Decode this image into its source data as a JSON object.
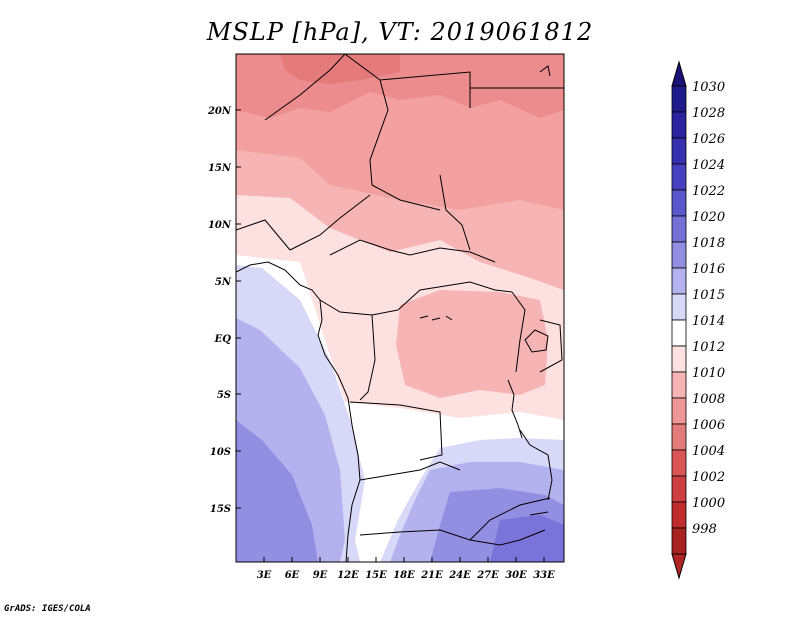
{
  "title": "MSLP [hPa], VT: 2019061812",
  "credit": "GrADS: IGES/COLA",
  "latitude_labels": [
    "20N",
    "15N",
    "10N",
    "5N",
    "EQ",
    "5S",
    "10S",
    "15S"
  ],
  "longitude_labels": [
    "3E",
    "6E",
    "9E",
    "12E",
    "15E",
    "18E",
    "21E",
    "24E",
    "27E",
    "30E",
    "33E"
  ],
  "colorbar": {
    "levels": [
      {
        "label": "1030",
        "color": "#1e1a8c"
      },
      {
        "label": "1028",
        "color": "#2a229e"
      },
      {
        "label": "1026",
        "color": "#3630b0"
      },
      {
        "label": "1024",
        "color": "#4640c0"
      },
      {
        "label": "1022",
        "color": "#5a56cc"
      },
      {
        "label": "1020",
        "color": "#7470d8"
      },
      {
        "label": "1018",
        "color": "#928fe2"
      },
      {
        "label": "1016",
        "color": "#b4b2ee"
      },
      {
        "label": "1015",
        "color": "#d8d8f8"
      },
      {
        "label": "1014",
        "color": "#ffffff"
      },
      {
        "label": "1012",
        "color": "#fde0e0"
      },
      {
        "label": "1010",
        "color": "#f6b4b4"
      },
      {
        "label": "1008",
        "color": "#ef9696"
      },
      {
        "label": "1006",
        "color": "#e47a7a"
      },
      {
        "label": "1004",
        "color": "#da5656"
      },
      {
        "label": "1002",
        "color": "#cf3e3e"
      },
      {
        "label": "1000",
        "color": "#c02c2c"
      },
      {
        "label": "998",
        "color": "#a82222"
      }
    ],
    "top_arrow_color": "#1a1278",
    "bottom_arrow_color": "#b02424"
  },
  "field_colors": {
    "p1004": "#e47a7a",
    "p1006": "#ec8c8c",
    "p1008": "#f2a0a0",
    "p1010": "#f6b4b4",
    "p1012": "#fde0e0",
    "p1014": "#ffffff",
    "p1016": "#d8d8f8",
    "p1018": "#b4b2ee",
    "p1020": "#928fe2",
    "p1022": "#7a74da"
  }
}
